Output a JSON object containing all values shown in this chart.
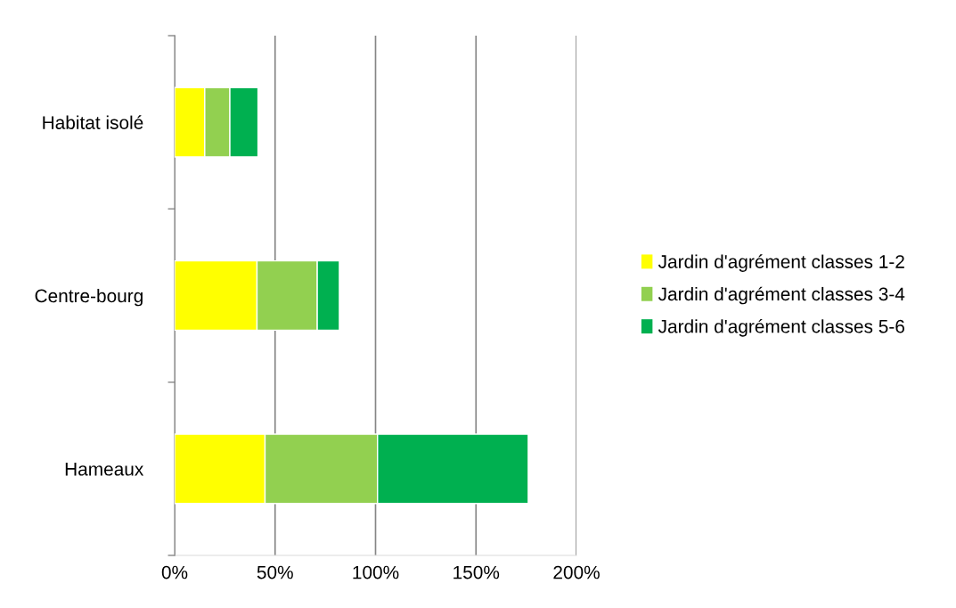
{
  "chart_data": {
    "type": "bar",
    "orientation": "horizontal",
    "stacked": true,
    "categories": [
      "Habitat isolé",
      "Centre-bourg",
      "Hameaux"
    ],
    "series": [
      {
        "name": "Jardin d'agrément classes 1-2",
        "color": "#ffff00",
        "values": [
          15,
          41,
          45
        ]
      },
      {
        "name": "Jardin d'agrément classes 3-4",
        "color": "#92d050",
        "values": [
          12.5,
          30,
          56
        ]
      },
      {
        "name": "Jardin d'agrément classes 5-6",
        "color": "#00b050",
        "values": [
          14,
          11,
          75
        ]
      }
    ],
    "xlim": [
      0,
      200
    ],
    "xticks": [
      {
        "value": 0,
        "label": "0%"
      },
      {
        "value": 50,
        "label": "50%"
      },
      {
        "value": 100,
        "label": "100%"
      },
      {
        "value": 150,
        "label": "150%"
      },
      {
        "value": 200,
        "label": "200%"
      }
    ],
    "grid": "x",
    "legend": "right"
  }
}
